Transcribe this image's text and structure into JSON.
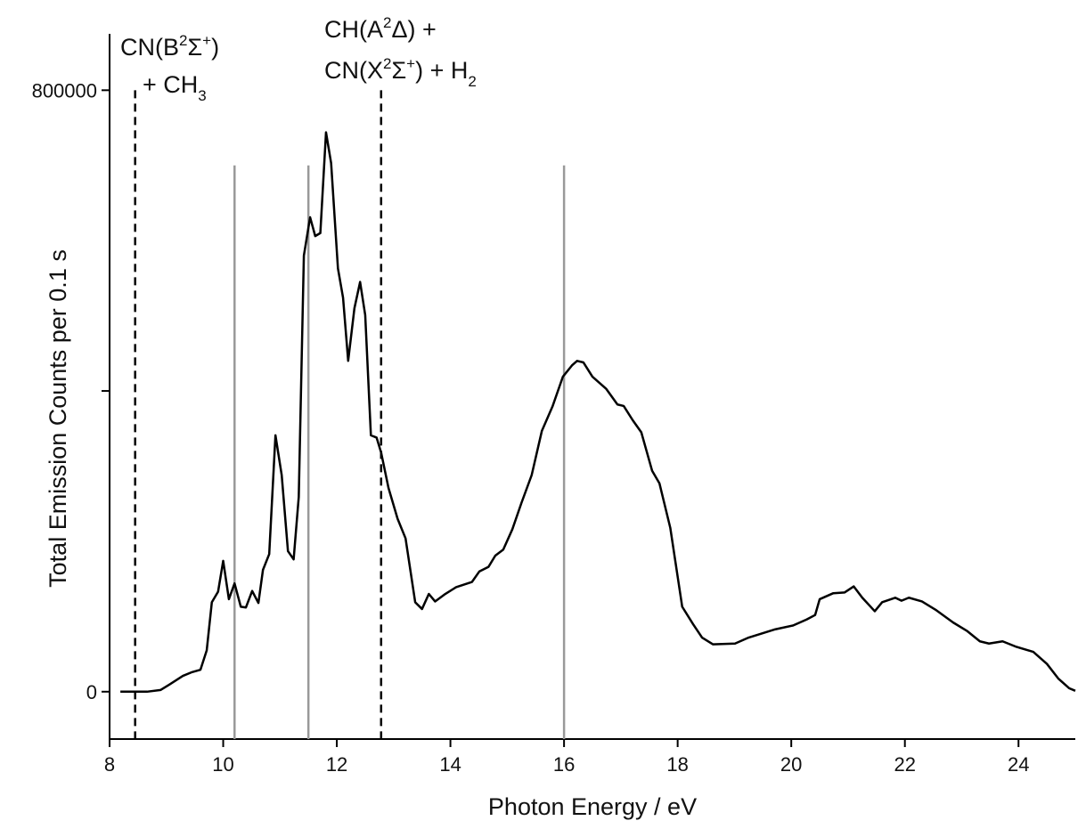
{
  "chart_data": {
    "type": "line",
    "xlabel": "Photon Energy / eV",
    "ylabel": "Total Emission Counts per 0.1 s",
    "xlim": [
      8,
      25
    ],
    "ylim": [
      -63000,
      875000
    ],
    "xticks": [
      8,
      10,
      12,
      14,
      16,
      18,
      20,
      22,
      24
    ],
    "yticks": [
      0,
      {
        "value": 400000,
        "label": null
      },
      800000
    ],
    "series": [
      {
        "color": "#000000",
        "x": [
          8.19,
          8.66,
          8.9,
          9.05,
          9.29,
          9.44,
          9.6,
          9.71,
          9.8,
          9.91,
          10.0,
          10.1,
          10.2,
          10.31,
          10.4,
          10.51,
          10.62,
          10.7,
          10.81,
          10.92,
          11.03,
          11.14,
          11.24,
          11.33,
          11.42,
          11.53,
          11.62,
          11.71,
          11.81,
          11.9,
          12.02,
          12.11,
          12.2,
          12.31,
          12.41,
          12.5,
          12.6,
          12.7,
          12.78,
          12.91,
          13.07,
          13.21,
          13.38,
          13.5,
          13.62,
          13.73,
          13.91,
          14.1,
          14.38,
          14.51,
          14.67,
          14.79,
          14.93,
          15.09,
          15.25,
          15.43,
          15.61,
          15.8,
          15.98,
          16.14,
          16.23,
          16.34,
          16.5,
          16.74,
          16.94,
          17.05,
          17.21,
          17.36,
          17.55,
          17.68,
          17.87,
          18.08,
          18.27,
          18.43,
          18.62,
          19.01,
          19.25,
          19.72,
          20.03,
          20.27,
          20.42,
          20.5,
          20.74,
          20.94,
          21.1,
          21.25,
          21.47,
          21.6,
          21.83,
          21.94,
          22.07,
          22.3,
          22.54,
          22.85,
          23.09,
          23.32,
          23.48,
          23.72,
          23.95,
          24.26,
          24.5,
          24.7,
          24.89,
          25.0
        ],
        "values": [
          0,
          0,
          2300,
          9300,
          21000,
          25700,
          29200,
          55000,
          119000,
          133000,
          174000,
          123000,
          144000,
          113000,
          112000,
          134000,
          118000,
          162000,
          183000,
          341000,
          288000,
          187000,
          176000,
          259000,
          580000,
          631000,
          606000,
          610000,
          744000,
          703000,
          563000,
          524000,
          440000,
          510000,
          545000,
          501000,
          341000,
          338000,
          318000,
          271000,
          230000,
          204000,
          119000,
          110000,
          130000,
          120000,
          130000,
          139000,
          146000,
          160000,
          166000,
          181000,
          189000,
          216000,
          251000,
          288000,
          347000,
          380000,
          419000,
          434000,
          440000,
          438000,
          419000,
          403000,
          382000,
          380000,
          361000,
          345000,
          294000,
          277000,
          218000,
          113000,
          90000,
          72000,
          63000,
          64000,
          72000,
          83000,
          88000,
          96000,
          102000,
          123000,
          131000,
          132000,
          140000,
          125000,
          107000,
          119000,
          125000,
          121000,
          125000,
          120000,
          109000,
          92000,
          81000,
          67000,
          64000,
          67000,
          60000,
          53000,
          37000,
          17500,
          4700,
          1200
        ]
      }
    ],
    "reference_lines": [
      {
        "x": 8.45,
        "top": 800000,
        "style": "dashed",
        "color": "#000000"
      },
      {
        "x": 10.2,
        "top": 700000,
        "style": "solid",
        "color": "#999999"
      },
      {
        "x": 11.5,
        "top": 700000,
        "style": "solid",
        "color": "#999999"
      },
      {
        "x": 12.78,
        "top": 800000,
        "style": "dashed",
        "color": "#000000"
      },
      {
        "x": 16.0,
        "top": 700000,
        "style": "solid",
        "color": "#999999"
      }
    ],
    "annotations": [
      [
        {
          "text": "CN(B"
        },
        {
          "text": "2",
          "sup": true
        },
        {
          "text": "Σ"
        },
        {
          "text": "+",
          "sup": true
        },
        {
          "text": ")"
        }
      ],
      [
        {
          "text": "+ CH"
        },
        {
          "text": "3",
          "sub": true
        }
      ],
      [
        {
          "text": "CH(A"
        },
        {
          "text": "2",
          "sup": true
        },
        {
          "text": "Δ) +"
        }
      ],
      [
        {
          "text": "CN(X"
        },
        {
          "text": "2",
          "sup": true
        },
        {
          "text": "Σ"
        },
        {
          "text": "+",
          "sup": true
        },
        {
          "text": ") + H"
        },
        {
          "text": "2",
          "sub": true
        }
      ]
    ]
  }
}
